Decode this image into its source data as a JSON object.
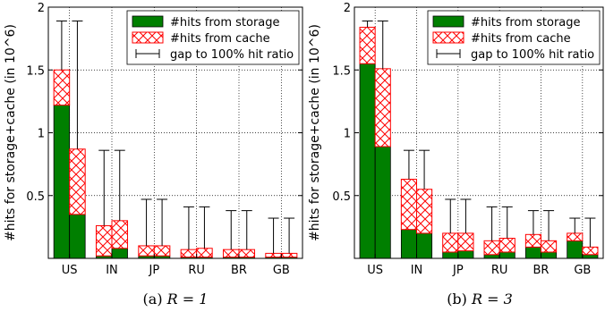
{
  "colors": {
    "storage": "#007f00",
    "cache_hatch": "#ff0000",
    "cache_bg": "#ffffff",
    "axis": "#000000"
  },
  "legend": {
    "storage": "#hits from storage",
    "cache": "#hits from cache",
    "gap": "gap to 100% hit ratio"
  },
  "chart_data": [
    {
      "type": "bar",
      "stacked": true,
      "caption": "(a) ",
      "caption_math": "R = 1",
      "ylabel": "#hits for storage+cache (in 10^6)",
      "ylim": [
        0,
        2
      ],
      "yticks": [
        "0.5",
        "1",
        "1.5",
        "2"
      ],
      "ytick_values": [
        0.5,
        1,
        1.5,
        2
      ],
      "categories": [
        "US",
        "IN",
        "JP",
        "RU",
        "BR",
        "GB"
      ],
      "legend_position": "top-right",
      "grid": true,
      "bars_per_category": 2,
      "series": [
        {
          "name": "#hits from storage",
          "values": [
            [
              1.22,
              0.35
            ],
            [
              0.02,
              0.08
            ],
            [
              0.02,
              0.02
            ],
            [
              0.01,
              0.01
            ],
            [
              0.01,
              0.01
            ],
            [
              0.01,
              0.01
            ]
          ]
        },
        {
          "name": "#hits from cache",
          "values": [
            [
              0.28,
              0.52
            ],
            [
              0.24,
              0.22
            ],
            [
              0.08,
              0.08
            ],
            [
              0.06,
              0.07
            ],
            [
              0.06,
              0.06
            ],
            [
              0.03,
              0.03
            ]
          ]
        }
      ],
      "error_top": [
        [
          1.89,
          1.89
        ],
        [
          0.86,
          0.86
        ],
        [
          0.47,
          0.47
        ],
        [
          0.41,
          0.41
        ],
        [
          0.38,
          0.38
        ],
        [
          0.32,
          0.32
        ]
      ]
    },
    {
      "type": "bar",
      "stacked": true,
      "caption": "(b) ",
      "caption_math": "R = 3",
      "ylabel": "#hits for storage+cache (in 10^6)",
      "ylim": [
        0,
        2
      ],
      "yticks": [
        "0.5",
        "1",
        "1.5",
        "2"
      ],
      "ytick_values": [
        0.5,
        1,
        1.5,
        2
      ],
      "categories": [
        "US",
        "IN",
        "JP",
        "RU",
        "BR",
        "GB"
      ],
      "legend_position": "top-right",
      "grid": true,
      "bars_per_category": 2,
      "series": [
        {
          "name": "#hits from storage",
          "values": [
            [
              1.55,
              0.89
            ],
            [
              0.23,
              0.2
            ],
            [
              0.05,
              0.06
            ],
            [
              0.03,
              0.05
            ],
            [
              0.09,
              0.05
            ],
            [
              0.14,
              0.03
            ]
          ]
        },
        {
          "name": "#hits from cache",
          "values": [
            [
              0.29,
              0.62
            ],
            [
              0.4,
              0.35
            ],
            [
              0.15,
              0.14
            ],
            [
              0.11,
              0.11
            ],
            [
              0.1,
              0.09
            ],
            [
              0.06,
              0.06
            ]
          ]
        }
      ],
      "error_top": [
        [
          1.89,
          1.89
        ],
        [
          0.86,
          0.86
        ],
        [
          0.47,
          0.47
        ],
        [
          0.41,
          0.41
        ],
        [
          0.38,
          0.38
        ],
        [
          0.32,
          0.32
        ]
      ]
    }
  ]
}
